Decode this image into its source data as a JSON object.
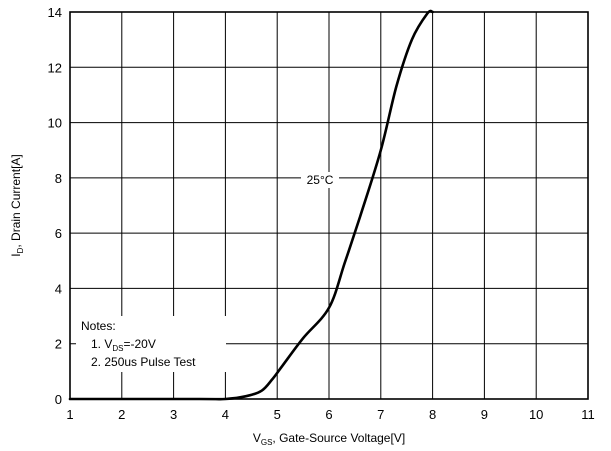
{
  "chart_data": {
    "type": "line",
    "title": "",
    "xlabel": {
      "main": "V",
      "sub": "GS",
      "rest": ", Gate-Source Voltage[V]"
    },
    "ylabel": {
      "main": "I",
      "sub": "D",
      "rest": ", Drain Current[A]"
    },
    "xlim": [
      1,
      11
    ],
    "ylim": [
      0,
      14
    ],
    "xticks": [
      1,
      2,
      3,
      4,
      5,
      6,
      7,
      8,
      9,
      10,
      11
    ],
    "yticks": [
      0,
      2,
      4,
      6,
      8,
      10,
      12,
      14
    ],
    "grid": true,
    "series": [
      {
        "label": "25°C",
        "x": [
          1.0,
          3.5,
          4.0,
          4.4,
          4.7,
          4.9,
          5.1,
          5.5,
          6.0,
          6.3,
          6.6,
          7.0,
          7.3,
          7.6,
          7.9,
          8.0
        ],
        "y": [
          0.0,
          0.0,
          0.0,
          0.1,
          0.3,
          0.7,
          1.2,
          2.2,
          3.3,
          4.9,
          6.6,
          9.0,
          11.3,
          13.0,
          13.95,
          14.0
        ]
      }
    ],
    "notes": {
      "heading": "Notes:",
      "line1": {
        "prefix": "1. V",
        "sub": "DS",
        "suffix": "=-20V"
      },
      "line2": "2. 250us Pulse Test"
    }
  }
}
